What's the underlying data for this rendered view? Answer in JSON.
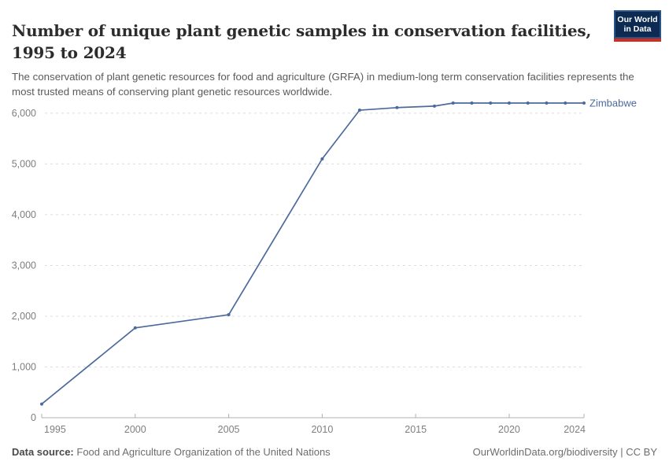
{
  "header": {
    "title_lines": [
      "Number of unique plant genetic samples in conservation facilities,",
      "1995 to 2024"
    ],
    "subtitle": "The conservation of plant genetic resources for food and agriculture (GRFA) in medium-long term conservation facilities represents the most trusted means of conserving plant genetic resources worldwide.",
    "logo": {
      "line1": "Our World",
      "line2": "in Data"
    }
  },
  "chart_data": {
    "type": "line",
    "title": "Number of unique plant genetic samples in conservation facilities, 1995 to 2024",
    "xlabel": "",
    "ylabel": "",
    "xlim": [
      1995,
      2024
    ],
    "ylim": [
      0,
      6200
    ],
    "grid": "horizontal-dashed",
    "legend_position": "end-of-line",
    "x_ticks": [
      1995,
      2000,
      2005,
      2010,
      2015,
      2020,
      2024
    ],
    "y_ticks": [
      0,
      1000,
      2000,
      3000,
      4000,
      5000,
      6000
    ],
    "y_tick_labels": [
      "0",
      "1,000",
      "2,000",
      "3,000",
      "4,000",
      "5,000",
      "6,000"
    ],
    "series": [
      {
        "name": "Zimbabwe",
        "color": "#4C6A9C",
        "points": [
          [
            1995,
            270
          ],
          [
            2000,
            1770
          ],
          [
            2005,
            2030
          ],
          [
            2010,
            5100
          ],
          [
            2012,
            6060
          ],
          [
            2014,
            6110
          ],
          [
            2016,
            6140
          ],
          [
            2017,
            6200
          ],
          [
            2018,
            6200
          ],
          [
            2019,
            6200
          ],
          [
            2020,
            6200
          ],
          [
            2021,
            6200
          ],
          [
            2022,
            6200
          ],
          [
            2023,
            6200
          ],
          [
            2024,
            6200
          ]
        ]
      }
    ]
  },
  "footer": {
    "datasource_label": "Data source:",
    "datasource": "Food and Agriculture Organization of the United Nations",
    "attribution": "OurWorldinData.org/biodiversity | CC BY"
  },
  "colors": {
    "line": "#4C6A9C",
    "grid": "#dcdcdc",
    "axis": "#b0b0b0",
    "tick_text": "#7e7e7e",
    "logo_bg": "#0d2a52",
    "logo_border": "#2d5286",
    "logo_red": "#d42b20"
  }
}
